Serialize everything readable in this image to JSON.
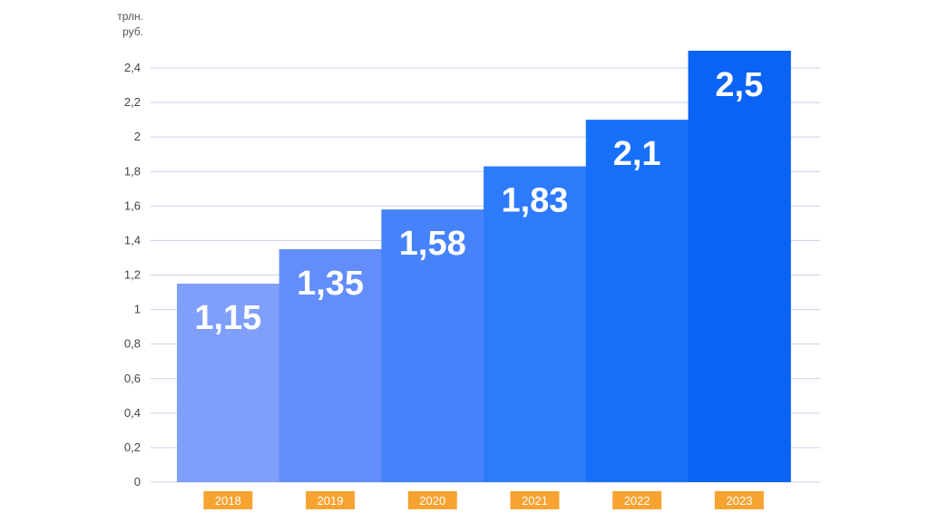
{
  "chart_data": {
    "type": "bar",
    "title": "",
    "xlabel": "",
    "ylabel": "",
    "unit_label": [
      "трлн.",
      "руб."
    ],
    "ylim": [
      0,
      2.4
    ],
    "yticks": [
      0,
      0.2,
      0.4,
      0.6,
      0.8,
      1,
      1.2,
      1.4,
      1.6,
      1.8,
      2,
      2.2,
      2.4
    ],
    "ytick_labels": [
      "0",
      "0,2",
      "0,4",
      "0,6",
      "0,8",
      "1",
      "1,2",
      "1,4",
      "1,6",
      "1,8",
      "2",
      "2,2",
      "2,4"
    ],
    "grid": true,
    "categories": [
      "2018",
      "2019",
      "2020",
      "2021",
      "2022",
      "2023"
    ],
    "values": [
      1.15,
      1.35,
      1.58,
      1.83,
      2.1,
      2.5
    ],
    "value_labels": [
      "1,15",
      "1,35",
      "1,58",
      "1,83",
      "2,1",
      "2,5"
    ],
    "bar_colors": [
      "#7f9ffb",
      "#628dfb",
      "#4683fb",
      "#2d7bfb",
      "#1870fa",
      "#0a63f5"
    ],
    "category_label_bg": "#f7a331",
    "grid_color": "#c9d3e6"
  }
}
